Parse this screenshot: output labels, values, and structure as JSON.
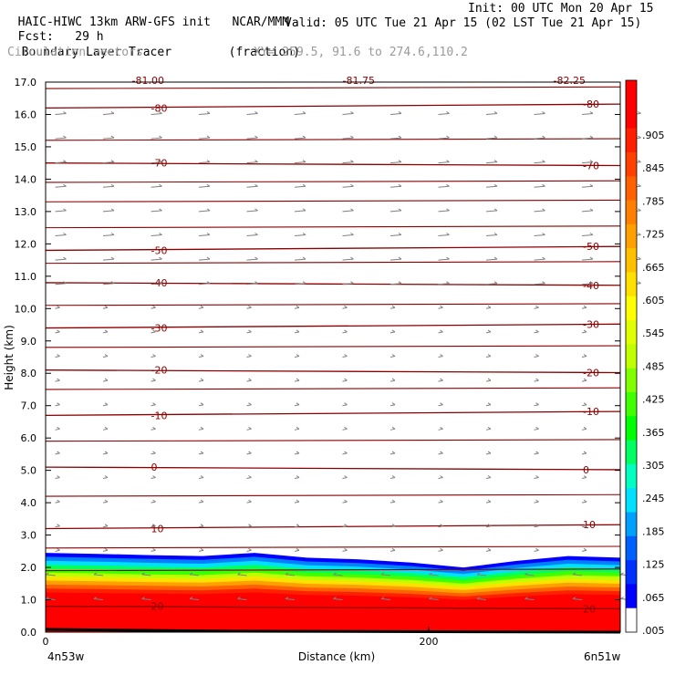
{
  "header": {
    "model": "HAIC-HIWC 13km ARW-GFS init",
    "org": "NCAR/MMM",
    "init": "Init: 00 UTC Mon 20 Apr 15",
    "fcst_label": "Fcst:",
    "fcst_value": "29 h",
    "valid": "Valid: 05 UTC Tue 21 Apr 15 (02 LST Tue 21 Apr 15)",
    "field": "Boundary Layer Tracer",
    "field_units": "(fraction)",
    "vectors": "Circulation vectors",
    "xy": "XY= 259.5, 91.6 to 274.6,110.2"
  },
  "colors": {
    "contour": "#8b0000",
    "vector": "#808080",
    "ground": "#000000"
  },
  "chart_data": {
    "type": "heatmap",
    "xlabel": "Distance (km)",
    "ylabel": "Height (km)",
    "xlim": [
      0,
      300
    ],
    "ylim": [
      0,
      17
    ],
    "x_ticks": [
      {
        "value": 0,
        "label": "0"
      },
      {
        "value": 200,
        "label": "200"
      }
    ],
    "x_end_labels": {
      "left": "4n53w",
      "right": "6n51w"
    },
    "y_ticks": [
      "0.0",
      "1.0",
      "2.0",
      "3.0",
      "4.0",
      "5.0",
      "6.0",
      "7.0",
      "8.0",
      "9.0",
      "10.0",
      "11.0",
      "12.0",
      "13.0",
      "14.0",
      "15.0",
      "16.0",
      "17.0"
    ],
    "colorbar": {
      "labels": [
        ".905",
        ".845",
        ".785",
        ".725",
        ".665",
        ".605",
        ".545",
        ".485",
        ".425",
        ".365",
        ".305",
        ".245",
        ".185",
        ".125",
        ".065",
        ".005"
      ],
      "colors": [
        "#ff0000",
        "#ff0000",
        "#ff2000",
        "#ff4000",
        "#ff6000",
        "#ff8000",
        "#ffa000",
        "#ffc000",
        "#ffe000",
        "#ffff00",
        "#e0ff00",
        "#c0ff00",
        "#80ff00",
        "#40ff00",
        "#00ff00",
        "#00ff60",
        "#00ffc0",
        "#00e0ff",
        "#00a0ff",
        "#0060ff",
        "#0030ff",
        "#0000ff",
        "#ffffff"
      ]
    },
    "tracer_top_km": [
      2.45,
      2.42,
      2.38,
      2.35,
      2.45,
      2.3,
      2.25,
      2.15,
      2.0,
      2.2,
      2.35,
      2.3
    ],
    "temperature_contours": [
      {
        "label": "-80",
        "y_km": 16.2
      },
      {
        "label": "-70",
        "y_km": 14.5
      },
      {
        "label": "-50",
        "y_km": 11.8
      },
      {
        "label": "-40",
        "y_km": 10.8
      },
      {
        "label": "-30",
        "y_km": 9.4
      },
      {
        "label": "-20",
        "y_km": 8.1
      },
      {
        "label": "-10",
        "y_km": 6.7
      },
      {
        "label": "0",
        "y_km": 5.1
      },
      {
        "label": "10",
        "y_km": 3.2
      },
      {
        "label": "20",
        "y_km": 0.8
      }
    ],
    "extra_contours_km": [
      16.8,
      15.2,
      13.9,
      13.3,
      12.5,
      11.4,
      10.1,
      8.8,
      7.5,
      5.9,
      4.2,
      2.6,
      1.9
    ],
    "top_labels": [
      "-81.00",
      "-81.75",
      "-82.25"
    ]
  }
}
